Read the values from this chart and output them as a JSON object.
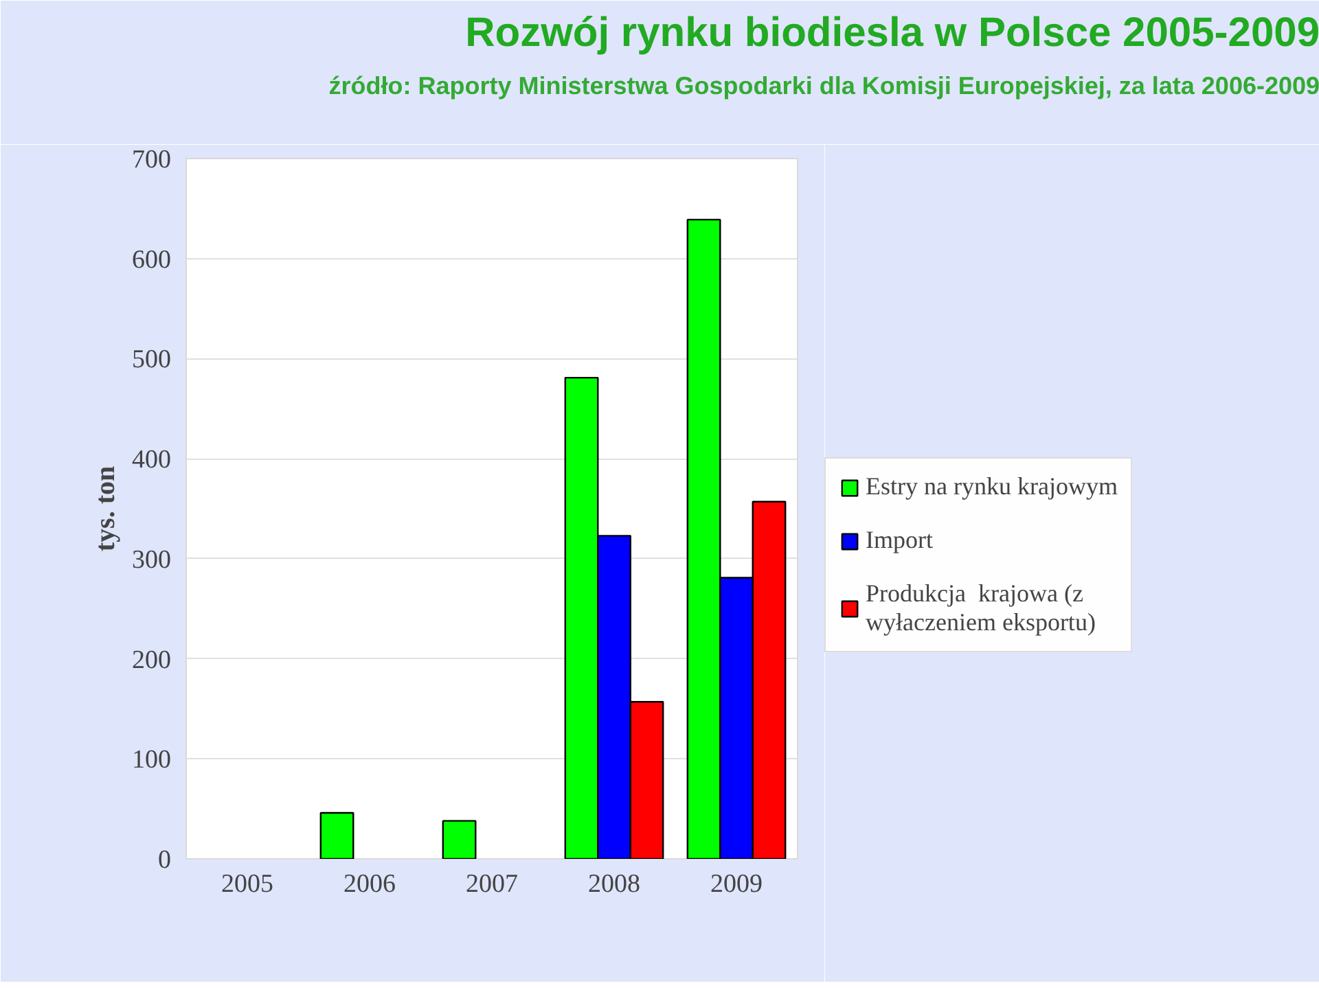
{
  "chart_data": {
    "type": "bar",
    "title": "Rozwój rynku biodiesla w Polsce 2005-2009",
    "subtitle": "źródło: Raporty Ministerstwa Gospodarki dla Komisji Europejskiej, za lata 2006-2009",
    "ylabel": "tys. ton",
    "categories": [
      "2005",
      "2006",
      "2007",
      "2008",
      "2009"
    ],
    "series": [
      {
        "name": "Estry na rynku krajowym",
        "color": "#00ff00",
        "values": [
          null,
          46,
          38,
          481,
          639
        ]
      },
      {
        "name": "Import",
        "color": "#0000ff",
        "values": [
          null,
          null,
          null,
          323,
          281
        ]
      },
      {
        "name": "Produkcja  krajowa (z wyłaczeniem eksportu)",
        "color": "#ff0000",
        "values": [
          null,
          null,
          null,
          157,
          357
        ]
      }
    ],
    "ylim": [
      0,
      700
    ],
    "yticks": [
      0,
      100,
      200,
      300,
      400,
      500,
      600,
      700
    ],
    "grid": "y",
    "legend": "right"
  }
}
